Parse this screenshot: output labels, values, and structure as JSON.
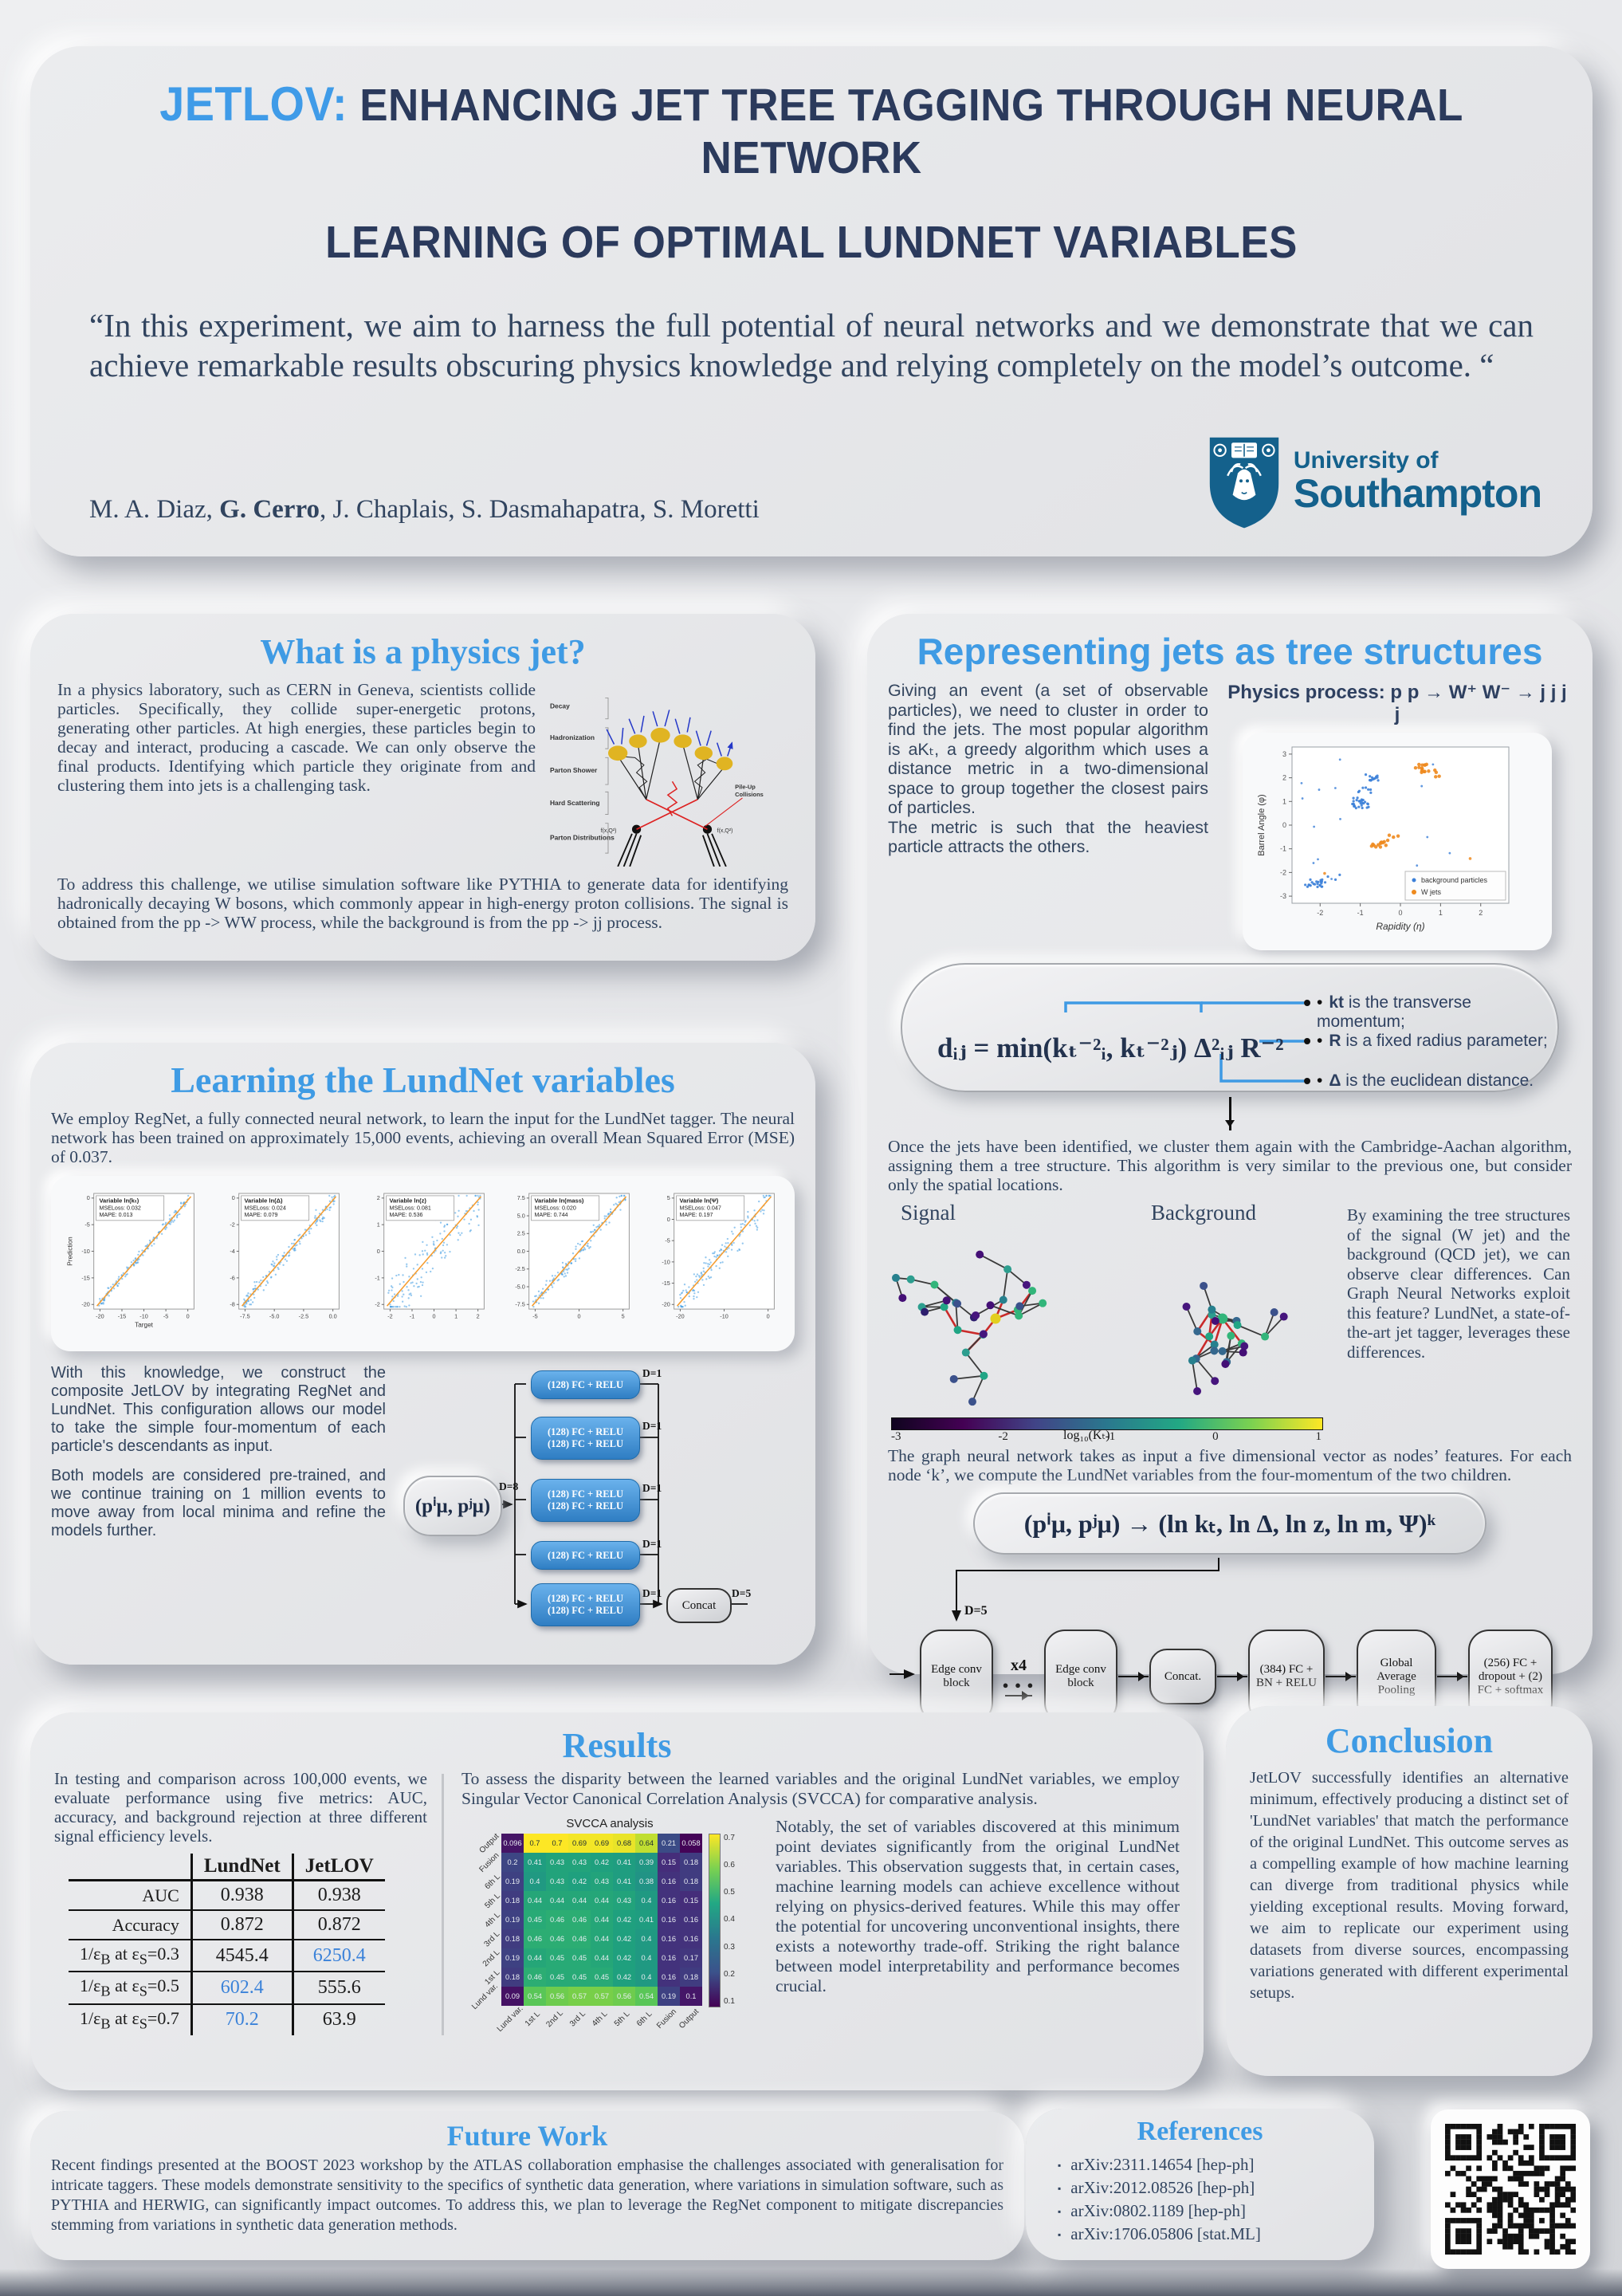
{
  "header": {
    "title_brand": "JETLOV:",
    "title_line1": "ENHANCING JET TREE TAGGING THROUGH NEURAL NETWORK",
    "title_line2": "LEARNING OF OPTIMAL LUNDNET VARIABLES",
    "quote": "“In this experiment, we aim to harness the full potential of neural networks and we demonstrate that we can achieve remarkable results obscuring physics knowledge and relying completely on the model’s outcome. “",
    "authors_pre": "M. A. Diaz, ",
    "authors_bold": "G. Cerro",
    "authors_post": ", J. Chaplais, S. Dasmahapatra, S. Moretti",
    "logo_line1": "University of",
    "logo_line2": "Southampton"
  },
  "jet_section": {
    "title": "What is a physics jet?",
    "para1": "In a physics laboratory, such as CERN in Geneva, scientists collide particles. Specifically, they collide super-energetic protons, generating other particles. At high energies, these particles begin to decay and interact, producing a cascade. We can only observe the final products. Identifying which particle they originate from and clustering them into jets is a challenging task.",
    "para2": "To address this challenge, we utilise simulation software like PYTHIA to generate data for identifying hadronically decaying W bosons, which commonly appear in high-energy proton collisions. The signal is obtained from the pp -> WW process, while the background is from the pp -> jj process.",
    "diagram": {
      "labels": [
        "Decay",
        "Hadronization",
        "Parton Shower",
        "Hard Scattering",
        "Parton Distributions"
      ],
      "pileup1": "Pile-Up",
      "pileup2": "Collisions",
      "fxq": "f(x,Q²)"
    }
  },
  "tree_section": {
    "title": "Representing jets as tree structures",
    "para1a": "Giving an event (a set of observable particles), we need to cluster in order to find the jets. The most popular algorithm is aKₜ, a greedy algorithm which uses a distance metric in a two-dimensional space to group together the closest pairs of particles.",
    "para1b": "The metric is such that the heaviest particle attracts the others.",
    "process_label": "Physics process: p p → W⁺ W⁻ → j j j j",
    "scatter": {
      "xlabel": "Rapidity (η)",
      "ylabel": "Barrel Angle (φ)",
      "x_ticks": [
        "-2",
        "-1",
        "0",
        "1",
        "2"
      ],
      "y_ticks": [
        "-3",
        "-2",
        "-1",
        "0",
        "1",
        "2",
        "3"
      ],
      "legend": [
        "background particles",
        "W jets"
      ]
    },
    "formula": "dᵢⱼ = min(kₜ⁻²ᵢ, kₜ⁻²ⱼ) Δ²ᵢⱼ R⁻²",
    "bullets": [
      {
        "bold": "kt",
        "rest": " is the transverse momentum;"
      },
      {
        "bold": "R",
        "rest": " is a fixed radius parameter;"
      },
      {
        "bold": "Δ",
        "rest": " is the euclidean distance."
      }
    ],
    "para2": "Once the jets have been identified, we cluster them again with the Cambridge-Aachan algorithm, assigning them a tree structure. This algorithm is very similar to the previous one, but consider only the spatial locations.",
    "signal_label": "Signal",
    "background_label": "Background",
    "colorbar": {
      "ticks": [
        "-3",
        "-2",
        "-1",
        "0",
        "1"
      ],
      "label": "log₁₀(Kₜ)"
    },
    "para3": "By examining the tree structures of the signal (W jet) and the background (QCD jet), we can observe clear differences. Can Graph Neural Networks exploit this feature? LundNet, a state-of-the-art jet tagger, leverages these differences.",
    "para4": "The graph neural network takes as input a five dimensional vector as nodes’ features. For each node ‘k’, we compute the LundNet variables from the four-momentum of the two children.",
    "lund_formula": "(pⁱμ, pʲμ) → (ln kₜ, ln Δ, ln z, ln m, Ψ)ᵏ",
    "pipeline": {
      "d5": "D=5",
      "x4": "x4",
      "dots": "● ● ●",
      "boxes": [
        "Edge conv block",
        "Edge conv block",
        "Concat.",
        "(384) FC + BN + RELU",
        "Global Average Pooling",
        "(256) FC + dropout + (2) FC + softmax"
      ]
    }
  },
  "lund_section": {
    "title": "Learning the LundNet variables",
    "para1": "We employ RegNet, a fully connected neural network, to learn the input for the LundNet tagger. The neural network has been trained on approximately 15,000 events, achieving an overall Mean Squared Error (MSE) of 0.037.",
    "plots": [
      {
        "name": "Variable ln(kₜ)",
        "mse": "MSELoss: 0.032",
        "mape": "MAPE: 0.013",
        "xlabel": "Target",
        "ylabel": "Prediction",
        "xticks": [
          "-20",
          "-15",
          "-10",
          "-5",
          "0"
        ],
        "yticks": [
          "0",
          "-5",
          "-10",
          "-15",
          "-20"
        ]
      },
      {
        "name": "Variable ln(Δ)",
        "mse": "MSELoss: 0.024",
        "mape": "MAPE: 0.079",
        "xticks": [
          "-7.5",
          "-5.0",
          "-2.5",
          "0.0"
        ],
        "yticks": [
          "0",
          "-2",
          "-4",
          "-6",
          "-8"
        ]
      },
      {
        "name": "Variable ln(z)",
        "mse": "MSELoss: 0.081",
        "mape": "MAPE: 0.536",
        "xticks": [
          "-2",
          "-1",
          "0",
          "1",
          "2"
        ],
        "yticks": [
          "2",
          "1",
          "0",
          "-1",
          "-2"
        ]
      },
      {
        "name": "Variable ln(mass)",
        "mse": "MSELoss: 0.020",
        "mape": "MAPE: 0.744",
        "xticks": [
          "-5",
          "0",
          "5"
        ],
        "yticks": [
          "7.5",
          "5.0",
          "2.5",
          "0.0",
          "-2.5",
          "-5.0",
          "-7.5"
        ]
      },
      {
        "name": "Variable ln(Ψ)",
        "mse": "MSELoss: 0.047",
        "mape": "MAPE: 0.197",
        "xticks": [
          "-20",
          "-10",
          "0"
        ],
        "yticks": [
          "5",
          "0",
          "-5",
          "-10",
          "-15",
          "-20"
        ]
      }
    ],
    "para2": "With this knowledge, we construct the composite JetLOV by integrating RegNet and LundNet. This configuration allows our model to take the simple four-momentum of each particle's descendants as input.",
    "para3": "Both models are considered pre-trained, and we continue training on 1 million events to move away from local minima and refine the models further.",
    "regnet": {
      "input": "(pⁱμ, pʲμ)",
      "d8": "D=8",
      "d1": "D=1",
      "d5": "D=5",
      "box": "(128) FC + RELU",
      "concat": "Concat"
    }
  },
  "results": {
    "title": "Results",
    "para_left": "In testing and comparison across 100,000 events, we evaluate performance using five metrics: AUC, accuracy, and background rejection at three different signal efficiency levels.",
    "table": {
      "col_headers": [
        "LundNet",
        "JetLOV"
      ],
      "rows": [
        {
          "pre": "AUC",
          "lundnet": "0.938",
          "jetlov": "0.938"
        },
        {
          "pre": "Accuracy",
          "lundnet": "0.872",
          "jetlov": "0.872"
        },
        {
          "pre": "1/ε",
          "sub1": "B",
          "mid": " at ε",
          "sub2": "S",
          "post": "=0.3",
          "lundnet": "4545.4",
          "jetlov": "6250.4"
        },
        {
          "pre": "1/ε",
          "sub1": "B",
          "mid": " at ε",
          "sub2": "S",
          "post": "=0.5",
          "lundnet": "602.4",
          "jetlov": "555.6"
        },
        {
          "pre": "1/ε",
          "sub1": "B",
          "mid": " at ε",
          "sub2": "S",
          "post": "=0.7",
          "lundnet": "70.2",
          "jetlov": "63.9"
        }
      ]
    },
    "para_mid": "To assess the disparity between the learned variables and the original LundNet variables, we employ Singular Vector Canonical Correlation Analysis (SVCCA) for comparative analysis.",
    "heatmap": {
      "title": "SVCCA analysis",
      "col_labels": [
        "Lund var.",
        "1st L",
        "2nd L",
        "3rd L",
        "4th L",
        "5th L",
        "6th L",
        "Fusion",
        "Output"
      ],
      "row_labels": [
        "Output",
        "Fusion",
        "6th L",
        "5th L",
        "4th L",
        "3rd L",
        "2nd L",
        "1st L",
        "Lund var."
      ],
      "values": [
        [
          0.096,
          0.7,
          0.7,
          0.69,
          0.69,
          0.68,
          0.64,
          0.21,
          0.058
        ],
        [
          0.2,
          0.41,
          0.43,
          0.43,
          0.42,
          0.41,
          0.39,
          0.15,
          0.18
        ],
        [
          0.19,
          0.4,
          0.43,
          0.42,
          0.43,
          0.41,
          0.38,
          0.16,
          0.18
        ],
        [
          0.18,
          0.44,
          0.44,
          0.44,
          0.44,
          0.43,
          0.4,
          0.16,
          0.15
        ],
        [
          0.19,
          0.45,
          0.46,
          0.46,
          0.44,
          0.42,
          0.41,
          0.16,
          0.16
        ],
        [
          0.18,
          0.46,
          0.46,
          0.46,
          0.44,
          0.42,
          0.4,
          0.16,
          0.16
        ],
        [
          0.19,
          0.44,
          0.45,
          0.45,
          0.44,
          0.42,
          0.4,
          0.16,
          0.17
        ],
        [
          0.18,
          0.46,
          0.45,
          0.45,
          0.45,
          0.42,
          0.4,
          0.16,
          0.18
        ],
        [
          0.09,
          0.54,
          0.56,
          0.57,
          0.57,
          0.56,
          0.54,
          0.19,
          0.1
        ]
      ],
      "cbar_ticks": [
        "0.7",
        "0.6",
        "0.5",
        "0.4",
        "0.3",
        "0.2",
        "0.1"
      ]
    },
    "para_right": "Notably, the set of variables discovered at this minimum point deviates significantly from the original LundNet variables. This observation suggests that, in certain cases, machine learning models can achieve excellence without relying on physics-derived features. While this may offer the potential for uncovering unconventional insights, there exists a noteworthy trade-off. Striking the right balance between model interpretability and performance becomes crucial."
  },
  "conclusion": {
    "title": "Conclusion",
    "para": "JetLOV successfully identifies an alternative minimum, effectively producing a distinct set of 'LundNet variables' that match the performance of the original LundNet. This outcome serves as a compelling example of how machine learning can diverge from traditional physics while yielding exceptional results. Moving forward, we aim to replicate our experiment using datasets from diverse sources, encompassing variations generated with different experimental setups."
  },
  "future": {
    "title": "Future Work",
    "para": "Recent findings presented at the BOOST 2023 workshop by the ATLAS collaboration emphasise the challenges associated with generalisation for intricate taggers. These models demonstrate sensitivity to the specifics of synthetic data generation, where variations in simulation software, such as PYTHIA and HERWIG, can significantly impact outcomes. To address this, we plan to leverage the RegNet component to mitigate discrepancies stemming from variations in synthetic data generation methods."
  },
  "references": {
    "title": "References",
    "items": [
      "arXiv:2311.14654 [hep-ph]",
      "arXiv:2012.08526 [hep-ph]",
      "arXiv:0802.1189 [hep-ph]",
      "arXiv:1706.05806 [stat.ML]"
    ]
  }
}
